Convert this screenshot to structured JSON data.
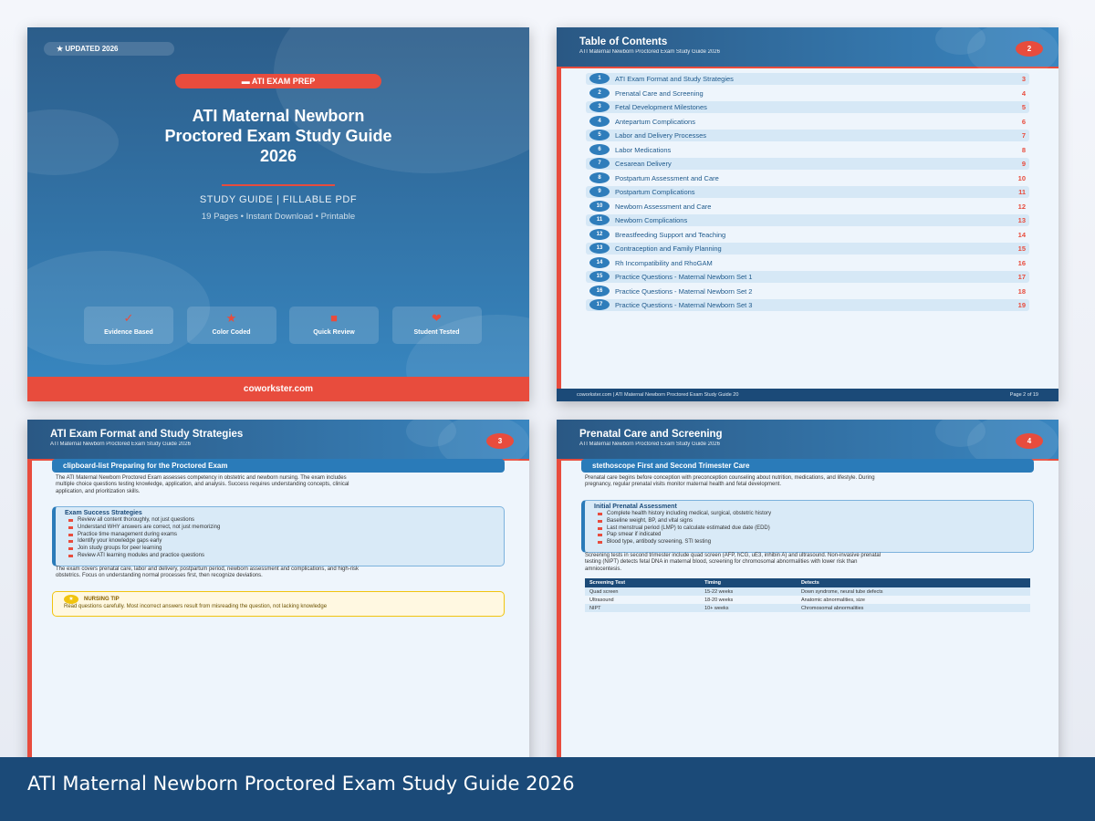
{
  "cover": {
    "updated_badge": "★ UPDATED 2026",
    "category_badge": "ATI EXAM PREP",
    "title_lines": [
      "ATI Maternal Newborn",
      "Proctored Exam Study Guide",
      "2026"
    ],
    "subtitle": "STUDY GUIDE  |  FILLABLE PDF",
    "meta": "19 Pages  •  Instant Download  •  Printable",
    "features": [
      {
        "icon": "✓",
        "icon_name": "check-icon",
        "label": "Evidence Based"
      },
      {
        "icon": "★",
        "icon_name": "star-icon",
        "label": "Color Coded"
      },
      {
        "icon": "■",
        "icon_name": "square-icon",
        "label": "Quick Review"
      },
      {
        "icon": "❤",
        "icon_name": "heart-icon",
        "label": "Student Tested"
      }
    ],
    "footer": "coworkster.com"
  },
  "toc": {
    "title": "Table of Contents",
    "subtitle": "ATI Maternal Newborn Proctored Exam Study Guide 2026",
    "page_number": "2",
    "items": [
      {
        "n": "1",
        "label": "ATI Exam Format and Study Strategies",
        "page": "3"
      },
      {
        "n": "2",
        "label": "Prenatal Care and Screening",
        "page": "4"
      },
      {
        "n": "3",
        "label": "Fetal Development Milestones",
        "page": "5"
      },
      {
        "n": "4",
        "label": "Antepartum Complications",
        "page": "6"
      },
      {
        "n": "5",
        "label": "Labor and Delivery Processes",
        "page": "7"
      },
      {
        "n": "6",
        "label": "Labor Medications",
        "page": "8"
      },
      {
        "n": "7",
        "label": "Cesarean Delivery",
        "page": "9"
      },
      {
        "n": "8",
        "label": "Postpartum Assessment and Care",
        "page": "10"
      },
      {
        "n": "9",
        "label": "Postpartum Complications",
        "page": "11"
      },
      {
        "n": "10",
        "label": "Newborn Assessment and Care",
        "page": "12"
      },
      {
        "n": "11",
        "label": "Newborn Complications",
        "page": "13"
      },
      {
        "n": "12",
        "label": "Breastfeeding Support and Teaching",
        "page": "14"
      },
      {
        "n": "13",
        "label": "Contraception and Family Planning",
        "page": "15"
      },
      {
        "n": "14",
        "label": "Rh Incompatibility and RhoGAM",
        "page": "16"
      },
      {
        "n": "15",
        "label": "Practice Questions - Maternal Newborn Set 1",
        "page": "17"
      },
      {
        "n": "16",
        "label": "Practice Questions - Maternal Newborn Set 2",
        "page": "18"
      },
      {
        "n": "17",
        "label": "Practice Questions - Maternal Newborn Set 3",
        "page": "19"
      }
    ],
    "footer_left": "coworkster.com  |  ATI Maternal Newborn Proctored Exam Study Guide 20",
    "footer_right": "Page 2 of 19"
  },
  "page3": {
    "title": "ATI Exam Format and Study Strategies",
    "subtitle": "ATI Maternal Newborn Proctored Exam Study Guide 2026",
    "page_number": "3",
    "section": "clipboard-list  Preparing for the Proctored Exam",
    "intro": "The ATI Maternal Newborn Proctored Exam assesses competency in obstetric and newborn nursing. The exam includes multiple choice questions testing knowledge, application, and analysis. Success requires understanding concepts, clinical application, and prioritization skills.",
    "box_title": "Exam Success Strategies",
    "box_items": [
      "Review all content thoroughly, not just questions",
      "Understand WHY answers are correct, not just memorizing",
      "Practice time management during exams",
      "Identify your knowledge gaps early",
      "Join study groups for peer learning",
      "Review ATI learning modules and practice questions"
    ],
    "body": "The exam covers prenatal care, labor and delivery, postpartum period, newborn assessment and complications, and high-risk obstetrics. Focus on understanding normal processes first, then recognize deviations.",
    "tip_title": "NURSING TIP",
    "tip_text": "Read questions carefully. Most incorrect answers result from misreading the question, not lacking knowledge"
  },
  "page4": {
    "title": "Prenatal Care and Screening",
    "subtitle": "ATI Maternal Newborn Proctored Exam Study Guide 2026",
    "page_number": "4",
    "section": "stethoscope  First and Second Trimester Care",
    "intro": "Prenatal care begins before conception with preconception counseling about nutrition, medications, and lifestyle. During pregnancy, regular prenatal visits monitor maternal health and fetal development.",
    "box_title": "Initial Prenatal Assessment",
    "box_items": [
      "Complete health history including medical, surgical, obstetric history",
      "Baseline weight, BP, and vital signs",
      "Last menstrual period (LMP) to calculate estimated due date (EDD)",
      "Pap smear if indicated",
      "Blood type, antibody screening, STI testing"
    ],
    "body": "Screening tests in second trimester include quad screen (AFP, hCG, uE3, inhibin A) and ultrasound. Non-invasive prenatal testing (NIPT) detects fetal DNA in maternal blood, screening for chromosomal abnormalities with lower risk than amniocentesis.",
    "table": {
      "headers": [
        "Screening Test",
        "Timing",
        "Detects"
      ],
      "rows": [
        [
          "Quad screen",
          "15-22 weeks",
          "Down syndrome, neural tube defects"
        ],
        [
          "Ultrasound",
          "18-20 weeks",
          "Anatomic abnormalities, size"
        ],
        [
          "NIPT",
          "10+ weeks",
          "Chromosomal abnormalities"
        ]
      ]
    }
  },
  "banner": {
    "title": "ATI Maternal Newborn Proctored Exam Study Guide 2026"
  },
  "colors": {
    "accent": "#e84c3d",
    "primary": "#2a7bb9",
    "dark": "#1b4a78",
    "tip": "#f1c40f"
  }
}
